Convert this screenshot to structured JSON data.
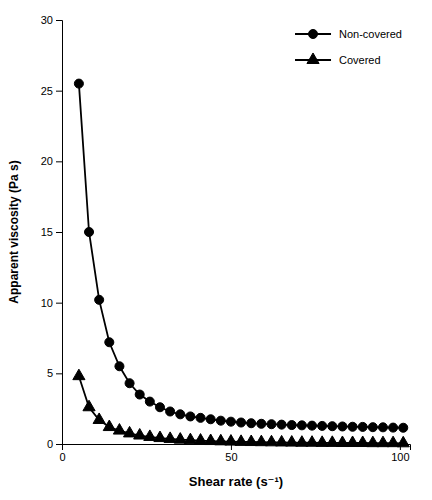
{
  "chart_data": {
    "type": "line",
    "xlabel": "Shear rate (s⁻¹)",
    "ylabel": "Apparent viscosity (Pa s)",
    "x": [
      5,
      8,
      11,
      14,
      17,
      20,
      23,
      26,
      29,
      32,
      35,
      38,
      41,
      44,
      47,
      50,
      53,
      56,
      59,
      62,
      65,
      68,
      71,
      74,
      77,
      80,
      83,
      86,
      89,
      92,
      95,
      98,
      101
    ],
    "series": [
      {
        "name": "Non-covered",
        "color": "#000000",
        "marker": "circle",
        "values": [
          25.5,
          15.0,
          10.2,
          7.2,
          5.5,
          4.3,
          3.5,
          3.0,
          2.6,
          2.3,
          2.1,
          1.95,
          1.85,
          1.75,
          1.65,
          1.58,
          1.52,
          1.47,
          1.43,
          1.4,
          1.37,
          1.34,
          1.32,
          1.3,
          1.28,
          1.26,
          1.24,
          1.22,
          1.21,
          1.19,
          1.18,
          1.16,
          1.15
        ]
      },
      {
        "name": "Covered",
        "color": "#000000",
        "marker": "triangle",
        "values": [
          4.8,
          2.6,
          1.7,
          1.2,
          0.95,
          0.75,
          0.6,
          0.5,
          0.42,
          0.36,
          0.31,
          0.27,
          0.24,
          0.21,
          0.19,
          0.17,
          0.15,
          0.14,
          0.13,
          0.12,
          0.11,
          0.1,
          0.09,
          0.09,
          0.08,
          0.08,
          0.07,
          0.07,
          0.07,
          0.06,
          0.06,
          0.06,
          0.05
        ]
      }
    ],
    "xlim": [
      0,
      103
    ],
    "ylim": [
      0,
      30
    ],
    "xticks": [
      0,
      50,
      100
    ],
    "yticks": [
      0,
      5,
      10,
      15,
      20,
      25,
      30
    ],
    "grid": false,
    "legend": "upper right"
  }
}
